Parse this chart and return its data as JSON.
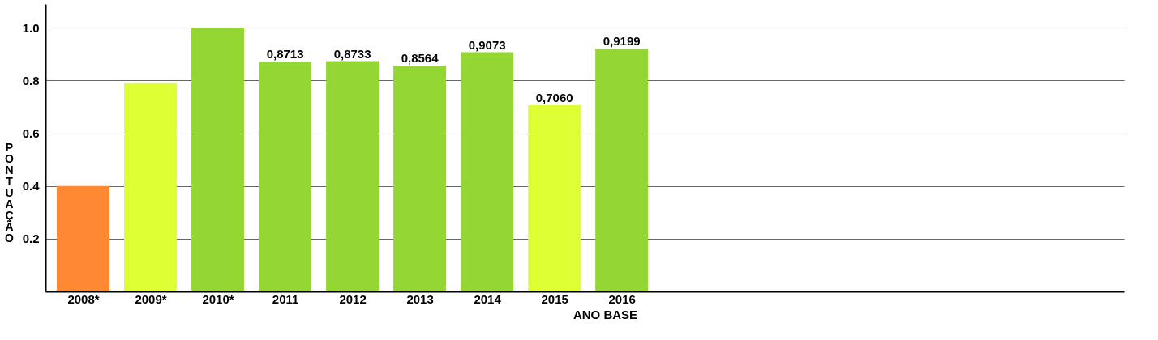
{
  "chart_data": {
    "type": "bar",
    "xlabel": "ANO BASE",
    "ylabel": "PONTUAÇÃO",
    "categories": [
      "2008*",
      "2009*",
      "2010*",
      "2011",
      "2012",
      "2013",
      "2014",
      "2015",
      "2016"
    ],
    "values": [
      0.4,
      0.79,
      1.0,
      0.8713,
      0.8733,
      0.8564,
      0.9073,
      0.706,
      0.9199
    ],
    "colors": [
      "#ff8833",
      "#ddff33",
      "#94d633",
      "#94d633",
      "#94d633",
      "#94d633",
      "#94d633",
      "#ddff33",
      "#94d633"
    ],
    "value_labels": [
      null,
      null,
      null,
      "0,8713",
      "0,8733",
      "0,8564",
      "0,9073",
      "0,7060",
      "0,9199"
    ],
    "ylim": [
      0,
      1.09
    ],
    "yticks": [
      0.2,
      0.4,
      0.6,
      0.8,
      {
        "value": 1,
        "label": "1.0"
      }
    ],
    "grid": "y"
  }
}
